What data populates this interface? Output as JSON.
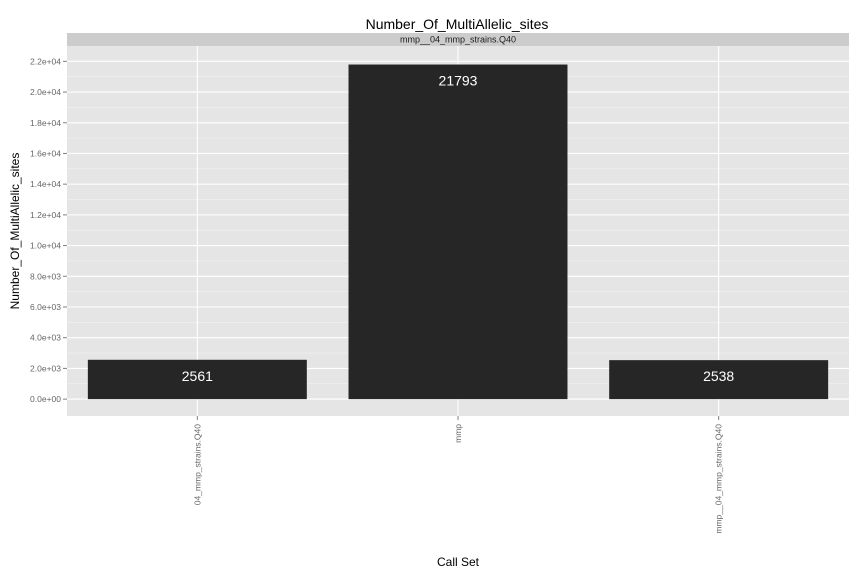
{
  "chart_data": {
    "type": "bar",
    "title": "Number_Of_MultiAllelic_sites",
    "facet_label": "mmp__04_mmp_strains.Q40",
    "xlabel": "Call Set",
    "ylabel": "Number_Of_MultiAllelic_sites",
    "categories": [
      "04_mmp_strains.Q40",
      "mmp",
      "mmp__04_mmp_strains.Q40"
    ],
    "values": [
      2561,
      21793,
      2538
    ],
    "data_labels": [
      "2561",
      "21793",
      "2538"
    ],
    "ylim": [
      -1100,
      23000
    ],
    "yticks": [
      0,
      2000,
      4000,
      6000,
      8000,
      10000,
      12000,
      14000,
      16000,
      18000,
      20000,
      22000
    ],
    "ytick_labels": [
      "0.0e+00",
      "2.0e+03",
      "4.0e+03",
      "6.0e+03",
      "8.0e+03",
      "1.0e+04",
      "1.2e+04",
      "1.4e+04",
      "1.6e+04",
      "1.8e+04",
      "2.0e+04",
      "2.2e+04"
    ],
    "grid": true,
    "legend": "none",
    "colors": {
      "panel": "#e5e5e5",
      "strip": "#cccccc",
      "grid": "#ffffff",
      "bar": "#262626",
      "bar_label": "#ffffff"
    }
  }
}
